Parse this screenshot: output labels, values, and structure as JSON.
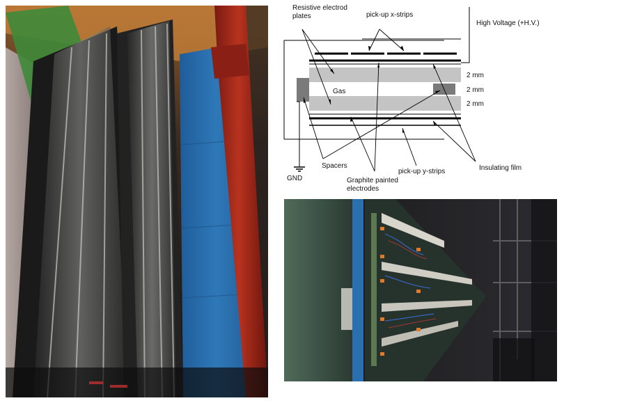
{
  "diagram": {
    "labels": {
      "resistive_line1": "Resistive electrod",
      "resistive_line2": "plates",
      "pickup_x": "pick-up x-strips",
      "high_voltage": "High Voltage (+H.V.)",
      "gap_top": "2 mm",
      "gap_mid": "2 mm",
      "gap_bottom": "2 mm",
      "gas": "Gas",
      "spacers": "Spacers",
      "gnd": "GND",
      "graphite_line1": "Graphite painted",
      "graphite_line2": "electrodes",
      "pickup_y": "pick-up y-strips",
      "insulating": "Insulating film"
    }
  },
  "photos": {
    "left": "photo-of-muon-chamber-installation",
    "bottom": "photo-of-rpc-chamber-electronics"
  },
  "colors": {
    "plate_gray": "#c4c4c4",
    "spacer_gray": "#7a7a7a",
    "blue_panel": "#2a6fae",
    "red_beam": "#a8291c",
    "warm_light": "#c8823a"
  }
}
